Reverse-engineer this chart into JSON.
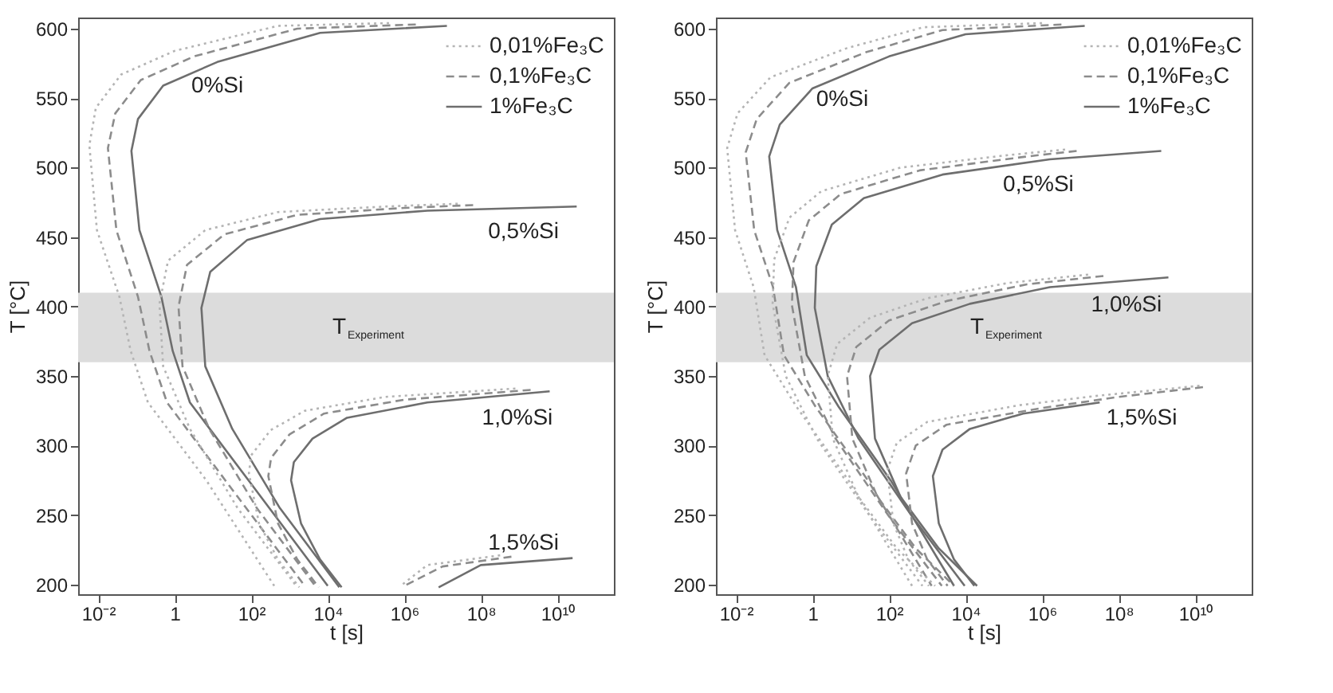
{
  "chart_data": [
    {
      "type": "line",
      "xlabel": "t [s]",
      "ylabel": "T [°C]",
      "log": "x",
      "xlim": [
        0.003,
        300000000000.0
      ],
      "ylim": [
        193,
        608
      ],
      "xticks": [
        {
          "value": 0.01,
          "label": "10⁻²"
        },
        1,
        {
          "value": 100,
          "label": "10²"
        },
        {
          "value": 10000,
          "label": "10⁴"
        },
        {
          "value": 1000000,
          "label": "10⁶"
        },
        {
          "value": 100000000,
          "label": "10⁸"
        },
        {
          "value": 10000000000,
          "label": "10¹⁰"
        }
      ],
      "yticks": [
        200,
        250,
        300,
        350,
        400,
        450,
        500,
        550,
        600
      ],
      "grid": false,
      "legend": "top right",
      "bands": [
        {
          "axis": "y",
          "from": 360,
          "to": 410,
          "label": "T$_{Experiment}$",
          "color": "#dcdcdc"
        }
      ],
      "annotations": [
        {
          "text": "0%Si",
          "x": 13,
          "y": 576
        },
        {
          "text": "0,5%Si",
          "x": 1300000000.0,
          "y": 471
        },
        {
          "text": "1,0%Si",
          "x": 900000000.0,
          "y": 337
        },
        {
          "text": "1,5%Si",
          "x": 1300000000.0,
          "y": 216
        }
      ],
      "series": [
        {
          "name": "0,01%Fe₃C",
          "color": "#b4b4b4",
          "line_style": "dotted",
          "x": [
            400000.0,
            500,
            1,
            0.04,
            0.0087,
            0.0059,
            0.0093,
            0.036,
            0.071,
            0.2,
            6.7,
            400
          ],
          "values": [
            604,
            602,
            584,
            567,
            543,
            516,
            455,
            407,
            368,
            331,
            275,
            199
          ]
        },
        {
          "name": "0,1%Fe₃C",
          "color": "#8c8c8c",
          "line_style": "dashed",
          "x": [
            2000000.0,
            1600,
            3.2,
            0.13,
            0.028,
            0.018,
            0.03,
            0.11,
            0.22,
            0.63,
            21,
            2500
          ],
          "values": [
            603,
            600,
            580,
            563,
            539,
            514,
            455,
            407,
            368,
            331,
            275,
            199
          ]
        },
        {
          "name": "1%Fe₃C",
          "color": "#6e6e6e",
          "line_style": "solid",
          "x": [
            13000000.0,
            6300,
            13,
            0.5,
            0.11,
            0.074,
            0.12,
            0.45,
            0.89,
            2.5,
            85,
            10000
          ],
          "values": [
            602,
            597,
            576,
            559,
            535,
            512,
            455,
            407,
            368,
            331,
            275,
            199
          ]
        },
        {
          "color": "#b4b4b4",
          "line_style": "dotted",
          "x": [
            25000000.0,
            320000.0,
            500,
            6.3,
            0.67,
            0.4,
            0.5,
            2.5,
            44,
            1600
          ],
          "values": [
            474,
            472,
            468,
            455,
            433,
            402,
            357,
            312,
            255,
            198
          ]
        },
        {
          "color": "#8c8c8c",
          "line_style": "dashed",
          "x": [
            63000000.0,
            1000000.0,
            1600,
            20,
            2.1,
            1.26,
            1.6,
            8,
            140,
            5000
          ],
          "values": [
            473,
            471,
            466,
            452,
            430,
            400,
            357,
            312,
            255,
            198
          ]
        },
        {
          "color": "#6e6e6e",
          "line_style": "solid",
          "x": [
            32000000000.0,
            4000000.0,
            6300,
            79,
            8.5,
            5,
            6.3,
            32,
            560,
            20000
          ],
          "values": [
            472,
            469,
            463,
            448,
            425,
            399,
            357,
            312,
            255,
            198
          ]
        },
        {
          "color": "#b4b4b4",
          "line_style": "dotted",
          "x": [
            800000000.0,
            320000.0,
            2500,
            320,
            100,
            87,
            160,
            500,
            1800
          ],
          "values": [
            341,
            335,
            325,
            311,
            293,
            280,
            244,
            218,
            198
          ]
        },
        {
          "color": "#8c8c8c",
          "line_style": "dashed",
          "x": [
            2000000000.0,
            1000000.0,
            8000,
            1000,
            330,
            280,
            500,
            1600,
            5800
          ],
          "values": [
            340,
            333,
            323,
            308,
            291,
            278,
            244,
            218,
            198
          ]
        },
        {
          "color": "#6e6e6e",
          "line_style": "solid",
          "x": [
            6300000000.0,
            4000000.0,
            32000,
            4000,
            1300,
            1100,
            2000,
            6300,
            23000
          ],
          "values": [
            339,
            331,
            320,
            305,
            288,
            275,
            244,
            218,
            198
          ]
        },
        {
          "color": "#b4b4b4",
          "line_style": "dotted",
          "x": [
            320000000.0,
            4000000.0,
            800000.0
          ],
          "values": [
            221,
            214,
            199
          ]
        },
        {
          "color": "#8c8c8c",
          "line_style": "dashed",
          "x": [
            630000000.0,
            10000000.0,
            1000000.0
          ],
          "values": [
            220,
            213,
            199
          ]
        },
        {
          "color": "#6e6e6e",
          "line_style": "solid",
          "x": [
            25000000000.0,
            100000000.0,
            7900000.0
          ],
          "values": [
            219,
            214,
            198
          ]
        }
      ]
    },
    {
      "type": "line",
      "xlabel": "t [s]",
      "ylabel": "T [°C]",
      "log": "x",
      "xlim": [
        0.003,
        300000000000.0
      ],
      "ylim": [
        193,
        608
      ],
      "xticks": [
        {
          "value": 0.01,
          "label": "10⁻²"
        },
        1,
        {
          "value": 100,
          "label": "10²"
        },
        {
          "value": 10000,
          "label": "10⁴"
        },
        {
          "value": 1000000,
          "label": "10⁶"
        },
        {
          "value": 100000000,
          "label": "10⁸"
        },
        {
          "value": 10000000000,
          "label": "10¹⁰"
        }
      ],
      "yticks": [
        200,
        250,
        300,
        350,
        400,
        450,
        500,
        550,
        600
      ],
      "grid": false,
      "legend": "top right",
      "bands": [
        {
          "axis": "y",
          "from": 360,
          "to": 410,
          "label": "T$_{Experiment}$",
          "color": "#dcdcdc"
        }
      ],
      "annotations": [
        {
          "text": "0%Si",
          "x": 6,
          "y": 566
        },
        {
          "text": "0,5%Si",
          "x": 800000.0,
          "y": 505
        },
        {
          "text": "1,0%Si",
          "x": 160000000.0,
          "y": 418
        },
        {
          "text": "1,5%Si",
          "x": 400000000.0,
          "y": 337
        }
      ],
      "series": [
        {
          "name": "0,01%Fe₃C",
          "color": "#b4b4b4",
          "line_style": "dotted",
          "x": [
            1000000.0,
            800,
            8,
            0.08,
            0.011,
            0.0059,
            0.0095,
            0.029,
            0.056,
            0.38,
            8.7,
            400
          ],
          "values": [
            604,
            601,
            586,
            565,
            539,
            514,
            455,
            414,
            365,
            328,
            275,
            199
          ]
        },
        {
          "name": "0,1%Fe₃C",
          "color": "#8c8c8c",
          "line_style": "dashed",
          "x": [
            3200000.0,
            2500,
            25,
            0.25,
            0.035,
            0.018,
            0.03,
            0.093,
            0.18,
            1.2,
            28,
            1300
          ],
          "values": [
            603,
            599,
            583,
            561,
            535,
            511,
            455,
            414,
            365,
            328,
            275,
            199
          ]
        },
        {
          "name": "1%Fe₃C",
          "color": "#6e6e6e",
          "line_style": "solid",
          "x": [
            13000000.0,
            10000,
            100,
            1,
            0.14,
            0.074,
            0.12,
            0.37,
            0.71,
            4.8,
            110,
            5000
          ],
          "values": [
            602,
            596,
            580,
            557,
            531,
            508,
            455,
            414,
            365,
            328,
            275,
            199
          ]
        },
        {
          "color": "#b4b4b4",
          "line_style": "dotted",
          "x": [
            4000000.0,
            130000.0,
            200,
            1.7,
            0.25,
            0.1,
            0.091,
            0.2,
            1.3,
            32,
            750
          ],
          "values": [
            513,
            509,
            500,
            483,
            464,
            434,
            402,
            350,
            305,
            249,
            199
          ]
        },
        {
          "color": "#8c8c8c",
          "line_style": "dashed",
          "x": [
            8000000.0,
            400000.0,
            630,
            5.5,
            0.8,
            0.32,
            0.29,
            0.63,
            4,
            100,
            2400
          ],
          "values": [
            512,
            508,
            498,
            481,
            462,
            432,
            401,
            350,
            305,
            249,
            199
          ]
        },
        {
          "color": "#6e6e6e",
          "line_style": "solid",
          "x": [
            1300000000.0,
            1600000.0,
            2500,
            22,
            3.2,
            1.26,
            1.15,
            2.5,
            16,
            400,
            9500
          ],
          "values": [
            512,
            506,
            495,
            478,
            459,
            429,
            399,
            350,
            305,
            249,
            199
          ]
        },
        {
          "color": "#b4b4b4",
          "line_style": "dotted",
          "x": [
            16000000.0,
            130000.0,
            1000,
            32,
            4.4,
            2.5,
            3.4,
            16,
            160,
            1600
          ],
          "values": [
            423,
            417,
            406,
            392,
            373,
            350,
            305,
            263,
            226,
            199
          ]
        },
        {
          "color": "#8c8c8c",
          "line_style": "dashed",
          "x": [
            40000000.0,
            400000.0,
            3200,
            100,
            14,
            8,
            11,
            50,
            500,
            5000
          ],
          "values": [
            422,
            416,
            404,
            390,
            371,
            350,
            305,
            263,
            226,
            199
          ]
        },
        {
          "color": "#6e6e6e",
          "line_style": "solid",
          "x": [
            2000000000.0,
            1600000.0,
            13000,
            400,
            56,
            32,
            43,
            200,
            2000,
            20000
          ],
          "values": [
            421,
            414,
            402,
            388,
            369,
            350,
            305,
            263,
            226,
            199
          ]
        },
        {
          "color": "#b4b4b4",
          "line_style": "dotted",
          "x": [
            13000000000.0,
            32000000.0,
            250000.0,
            1000,
            160,
            90,
            130,
            320,
            1100
          ],
          "values": [
            343,
            336,
            329,
            317,
            302,
            282,
            244,
            218,
            199
          ]
        },
        {
          "color": "#8c8c8c",
          "line_style": "dashed",
          "x": [
            16000000000.0,
            100000000.0,
            1000000.0,
            3200,
            500,
            280,
            400,
            1000,
            3400
          ],
          "values": [
            342,
            335,
            327,
            315,
            300,
            280,
            244,
            218,
            199
          ]
        },
        {
          "color": "#6e6e6e",
          "line_style": "solid",
          "x": [
            32000000.0,
            320000.0,
            13000,
            2500,
            1400,
            2000,
            5000,
            17000
          ],
          "values": [
            331,
            323,
            312,
            297,
            278,
            244,
            218,
            199
          ]
        }
      ]
    }
  ]
}
